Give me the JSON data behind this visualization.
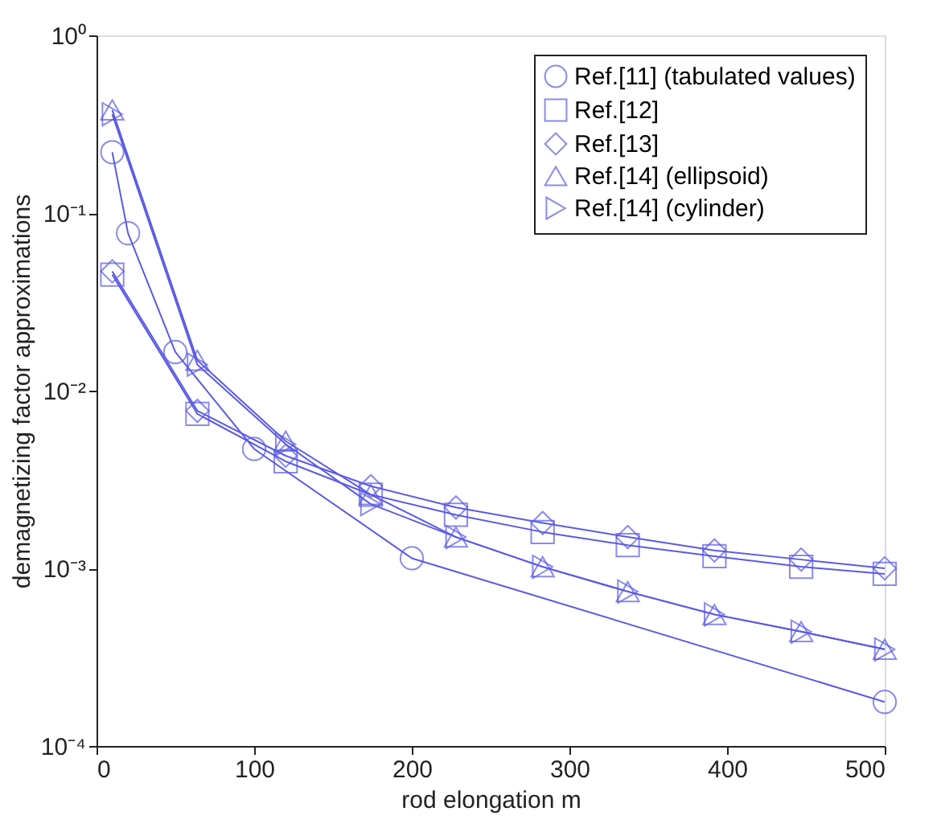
{
  "chart_data": {
    "type": "line",
    "xlabel": "rod elongation m",
    "ylabel": "demagnetizing factor approximations",
    "xlim": [
      0,
      500
    ],
    "xticks": [
      0,
      100,
      200,
      300,
      400,
      500
    ],
    "ylim": [
      0.0001,
      1
    ],
    "yticks": [
      {
        "value": 1,
        "label": "10⁰"
      },
      {
        "value": 0.1,
        "label": "10⁻¹"
      },
      {
        "value": 0.01,
        "label": "10⁻²"
      },
      {
        "value": 0.001,
        "label": "10⁻³"
      },
      {
        "value": 0.0001,
        "label": "10⁻⁴"
      }
    ],
    "log": "y",
    "grid": false,
    "legend": "top right",
    "line_style": "solid",
    "series": [
      {
        "name": "Ref.[11] (tabulated values)",
        "color": "#5a5ae6",
        "marker": "circle",
        "x": [
          10,
          20,
          50,
          100,
          200,
          500
        ],
        "values": [
          0.22,
          0.077,
          0.0165,
          0.0047,
          0.00114,
          0.000177
        ]
      },
      {
        "name": "Ref.[12]",
        "color": "#5a5ae6",
        "marker": "square",
        "x": [
          10,
          64,
          120,
          174,
          228,
          283,
          337,
          392,
          447,
          500
        ],
        "values": [
          0.045,
          0.0074,
          0.004,
          0.0026,
          0.002,
          0.0016,
          0.00135,
          0.00117,
          0.00102,
          0.00093
        ]
      },
      {
        "name": "Ref.[13]",
        "color": "#5a5ae6",
        "marker": "diamond",
        "x": [
          10,
          64,
          120,
          174,
          228,
          283,
          337,
          392,
          447,
          500
        ],
        "values": [
          0.047,
          0.0077,
          0.0043,
          0.0029,
          0.0022,
          0.0018,
          0.0015,
          0.00126,
          0.00112,
          0.001
        ]
      },
      {
        "name": "Ref.[14] (ellipsoid)",
        "color": "#5a5ae6",
        "marker": "triangle",
        "x": [
          10,
          64,
          120,
          174,
          228,
          283,
          337,
          392,
          447,
          500
        ],
        "values": [
          0.38,
          0.0148,
          0.0052,
          0.0026,
          0.0015,
          0.00102,
          0.00074,
          0.00055,
          0.00044,
          0.00035
        ]
      },
      {
        "name": "Ref.[14] (cylinder)",
        "color": "#5a5ae6",
        "marker": "triangle-right",
        "x": [
          10,
          64,
          120,
          174,
          228,
          283,
          337,
          392,
          447,
          500
        ],
        "values": [
          0.36,
          0.014,
          0.005,
          0.0023,
          0.0015,
          0.00102,
          0.00074,
          0.00055,
          0.00044,
          0.00035
        ]
      }
    ]
  }
}
